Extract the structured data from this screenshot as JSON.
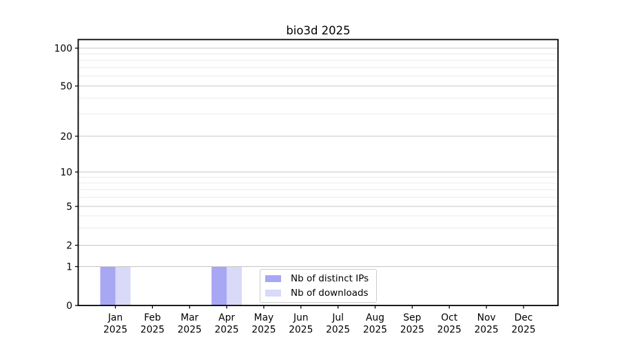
{
  "title": "bio3d 2025",
  "legend": {
    "items": [
      {
        "label": "Nb of distinct IPs",
        "color": "#a7a7f3"
      },
      {
        "label": "Nb of downloads",
        "color": "#d9d9f8"
      }
    ]
  },
  "x_axis": {
    "months": [
      "Jan",
      "Feb",
      "Mar",
      "Apr",
      "May",
      "Jun",
      "Jul",
      "Aug",
      "Sep",
      "Oct",
      "Nov",
      "Dec"
    ],
    "year": "2025"
  },
  "y_axis": {
    "tick_labels": [
      "0",
      "1",
      "2",
      "5",
      "10",
      "20",
      "50",
      "100"
    ]
  },
  "colors": {
    "grid_major": "#c4c4c4",
    "grid_minor": "#eaeaea",
    "spine": "#000000",
    "tick": "#000000",
    "bar_distinct_ips": "#a7a7f3",
    "bar_downloads": "#d9d9f8"
  },
  "chart_data": {
    "type": "bar",
    "title": "bio3d 2025",
    "categories": [
      "Jan 2025",
      "Feb 2025",
      "Mar 2025",
      "Apr 2025",
      "May 2025",
      "Jun 2025",
      "Jul 2025",
      "Aug 2025",
      "Sep 2025",
      "Oct 2025",
      "Nov 2025",
      "Dec 2025"
    ],
    "series": [
      {
        "name": "Nb of distinct IPs",
        "color": "#a7a7f3",
        "values": [
          1,
          0,
          0,
          1,
          0,
          0,
          0,
          0,
          0,
          0,
          0,
          0
        ]
      },
      {
        "name": "Nb of downloads",
        "color": "#d9d9f8",
        "values": [
          1,
          0,
          0,
          1,
          0,
          0,
          0,
          0,
          0,
          0,
          0,
          0
        ]
      }
    ],
    "yscale": "log-like (linear 0-1, logarithmic above 1)",
    "ylim": [
      0,
      110
    ],
    "y_major_ticks": [
      0,
      1,
      2,
      5,
      10,
      20,
      50,
      100
    ],
    "y_minor_ticks": [
      3,
      4,
      6,
      7,
      8,
      9,
      30,
      40,
      60,
      70,
      80,
      90
    ],
    "grid": true,
    "legend_position": "lower center"
  }
}
